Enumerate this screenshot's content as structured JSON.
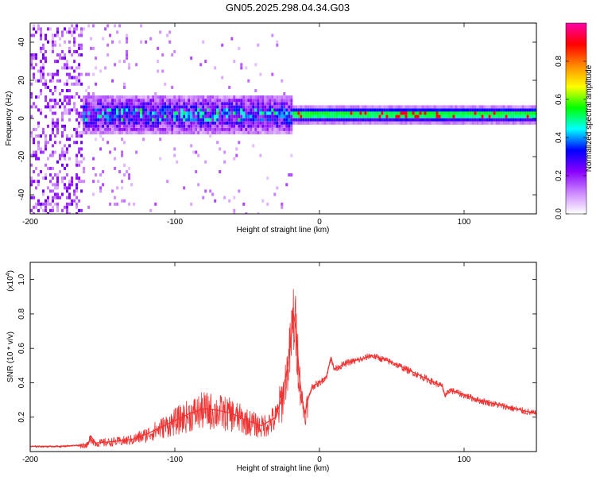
{
  "title": "GN05.2025.298.04.34.G03",
  "colorbar": {
    "label": "Normalized spectral amplitude",
    "ticks": [
      "0.0",
      "0.2",
      "0.4",
      "0.6",
      "0.8"
    ],
    "tick_values": [
      0.0,
      0.2,
      0.4,
      0.6,
      0.8
    ],
    "range": [
      0,
      1
    ],
    "colors": [
      "#ffffff",
      "#cc88ff",
      "#8800ff",
      "#0000ff",
      "#00ffff",
      "#00ff00",
      "#ffff00",
      "#ff8800",
      "#ff0000",
      "#ff00aa"
    ]
  },
  "chart_data": [
    {
      "type": "heatmap",
      "xlabel": "Height of straight line (km)",
      "ylabel": "Frequency (Hz)",
      "xlim": [
        -200,
        150
      ],
      "ylim": [
        -50,
        50
      ],
      "xticks": [
        -200,
        -100,
        0,
        100
      ],
      "xtick_labels": [
        "-200",
        "-100",
        "0",
        "100"
      ],
      "yticks": [
        -40,
        -20,
        0,
        20,
        40
      ],
      "ytick_labels": [
        "-40",
        "-20",
        "0",
        "20",
        "40"
      ],
      "band_center_hz": 2,
      "regions": [
        {
          "x": [
            -200,
            -165
          ],
          "description": "broadband noise",
          "amplitude": 0.15
        },
        {
          "x": [
            -165,
            -20
          ],
          "description": "scattered energy around 0 Hz",
          "amplitude": 0.45,
          "half_width_hz": 10
        },
        {
          "x": [
            -20,
            150
          ],
          "description": "narrow band near 0-2 Hz",
          "amplitude": 0.6,
          "half_width_hz": 3
        }
      ]
    },
    {
      "type": "line",
      "xlabel": "Height of straight line (km)",
      "ylabel": "SNR (10 * v/v)",
      "y_multiplier": "(x10",
      "y_multiplier_exp": "4",
      "y_multiplier_close": ")",
      "xlim": [
        -200,
        150
      ],
      "ylim": [
        0,
        1.1
      ],
      "xticks": [
        -200,
        -100,
        0,
        100
      ],
      "xtick_labels": [
        "-200",
        "-100",
        "0",
        "100"
      ],
      "yticks": [
        0.2,
        0.4,
        0.6,
        0.8,
        1.0
      ],
      "ytick_labels": [
        "0.2",
        "0.4",
        "0.6",
        "0.8",
        "1.0"
      ],
      "color": "#ee3333",
      "series": [
        {
          "x": [
            -200,
            -180,
            -160,
            -158,
            -155,
            -140,
            -130,
            -120,
            -110,
            -100,
            -90,
            -80,
            -70,
            -60,
            -50,
            -40,
            -30,
            -25,
            -22,
            -20,
            -18,
            -16,
            -14,
            -12,
            -10,
            -8,
            -5,
            0,
            5,
            8,
            10,
            15,
            20,
            30,
            35,
            40,
            50,
            60,
            70,
            80,
            85,
            87,
            90,
            100,
            110,
            120,
            130,
            140,
            150
          ],
          "y": [
            0.03,
            0.03,
            0.04,
            0.09,
            0.05,
            0.06,
            0.07,
            0.1,
            0.14,
            0.18,
            0.22,
            0.25,
            0.24,
            0.22,
            0.18,
            0.15,
            0.2,
            0.35,
            0.5,
            0.62,
            0.8,
            0.7,
            0.45,
            0.3,
            0.22,
            0.3,
            0.38,
            0.4,
            0.44,
            0.55,
            0.48,
            0.5,
            0.52,
            0.54,
            0.56,
            0.55,
            0.52,
            0.48,
            0.44,
            0.4,
            0.38,
            0.32,
            0.36,
            0.33,
            0.3,
            0.28,
            0.26,
            0.24,
            0.22
          ]
        }
      ]
    }
  ]
}
